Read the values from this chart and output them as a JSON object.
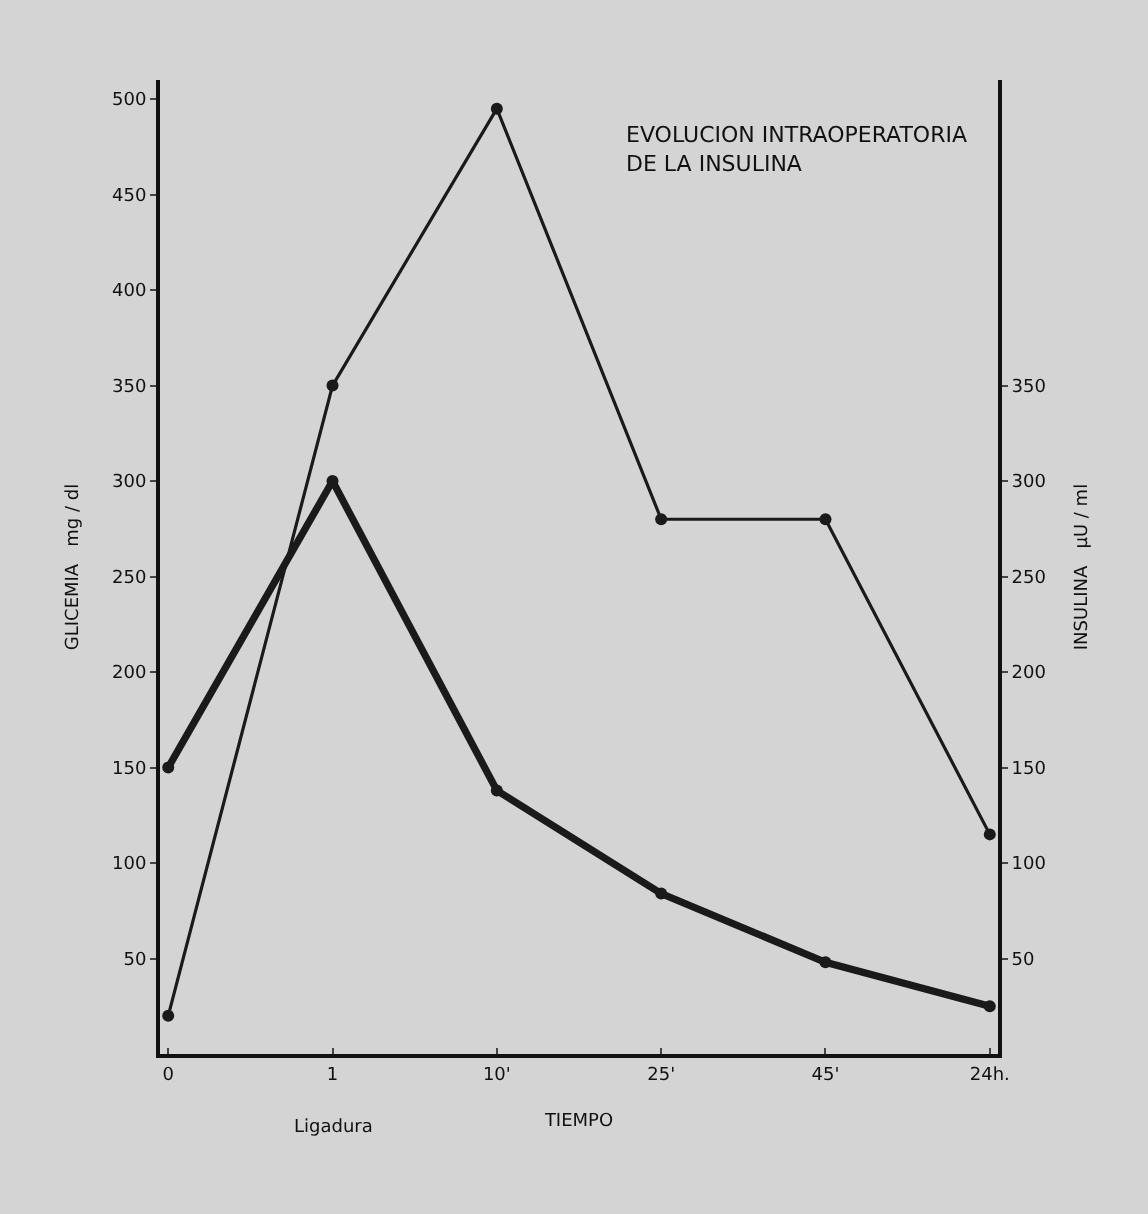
{
  "chart_data": {
    "type": "line",
    "title": "EVOLUCION INTRAOPERATORIA\nDE LA INSULINA",
    "xlabel": "TIEMPO",
    "ylabel": "GLICEMIA   mg / dl",
    "y2label": "INSULINA   µU / ml",
    "categories": [
      "0",
      "1",
      "10'",
      "25'",
      "45'",
      "24h."
    ],
    "series": [
      {
        "color": "#1a1a1a",
        "axis": "y2",
        "values": [
          20,
          350,
          495,
          280,
          280,
          115
        ]
      },
      {
        "color": "#1a1a1a",
        "values": [
          150,
          300,
          138,
          84,
          48,
          25
        ]
      }
    ],
    "annotations": [
      "Ligadura"
    ],
    "ylim": [
      0,
      510
    ],
    "yticks": [
      50,
      100,
      150,
      200,
      250,
      300,
      350,
      400,
      450,
      500
    ],
    "y2lim": [
      0,
      510
    ],
    "y2ticks": [
      50,
      100,
      150,
      200,
      250,
      300,
      350
    ],
    "marker": "circle",
    "line_style": "solid",
    "grid": false,
    "legend": false
  }
}
